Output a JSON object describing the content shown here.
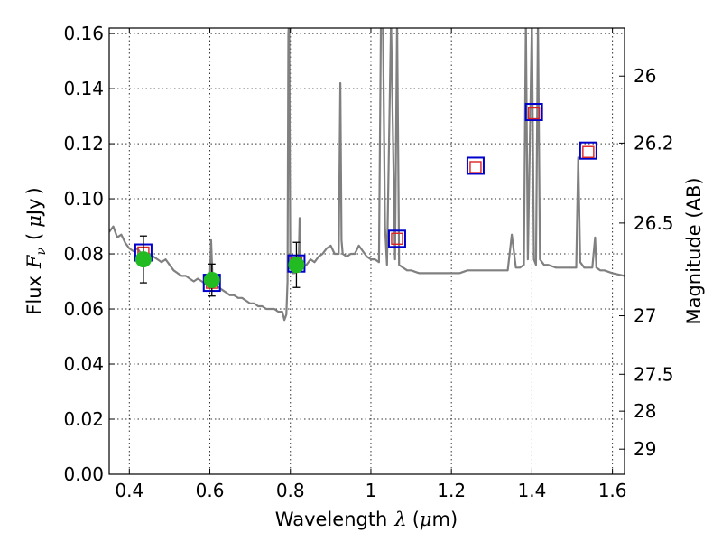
{
  "chart_data": {
    "type": "line",
    "title": "",
    "xlabel": "Wavelength",
    "xlabel_symbol": "λ",
    "xlabel_unit_open": "(",
    "xlabel_unit_mu": "μ",
    "xlabel_unit_rest": "m)",
    "ylabel": "Flux",
    "ylabel_symbol": "F",
    "ylabel_subscript": "ν",
    "ylabel_unit_open": "(",
    "ylabel_unit_mu": "μ",
    "ylabel_unit_rest": "Jy",
    "ylabel_unit_close": ")",
    "y2label": "Magnitude (AB)",
    "xlim": [
      0.35,
      1.63
    ],
    "ylim": [
      0.0,
      0.162
    ],
    "grid": true,
    "xticks": [
      0.4,
      0.6,
      0.8,
      1.0,
      1.2,
      1.4,
      1.6
    ],
    "xtick_labels": [
      "0.4",
      "0.6",
      "0.8",
      "1",
      "1.2",
      "1.4",
      "1.6"
    ],
    "yticks": [
      0.0,
      0.02,
      0.04,
      0.06,
      0.08,
      0.1,
      0.12,
      0.14,
      0.16
    ],
    "ytick_labels": [
      "0.00",
      "0.02",
      "0.04",
      "0.06",
      "0.08",
      "0.10",
      "0.12",
      "0.14",
      "0.16"
    ],
    "y2ticks": [
      {
        "label": "26",
        "mag": 26.0
      },
      {
        "label": "26.2",
        "mag": 26.2
      },
      {
        "label": "26.5",
        "mag": 26.5
      },
      {
        "label": "27",
        "mag": 27.0
      },
      {
        "label": "27.5",
        "mag": 27.5
      },
      {
        "label": "28",
        "mag": 28.0
      },
      {
        "label": "29",
        "mag": 29.0
      }
    ],
    "colors": {
      "spectrum": "#808080",
      "model_box_edge": "#0000cc",
      "observed_box_edge": "#dd2222",
      "observed_point": "#22bb22",
      "errorbar": "#000000"
    },
    "series": [
      {
        "name": "SED model spectrum",
        "x": [
          0.35,
          0.36,
          0.37,
          0.38,
          0.39,
          0.4,
          0.41,
          0.42,
          0.43,
          0.44,
          0.45,
          0.46,
          0.47,
          0.48,
          0.49,
          0.5,
          0.51,
          0.52,
          0.53,
          0.54,
          0.55,
          0.56,
          0.57,
          0.58,
          0.59,
          0.6,
          0.603,
          0.607,
          0.61,
          0.62,
          0.63,
          0.64,
          0.65,
          0.66,
          0.67,
          0.68,
          0.69,
          0.7,
          0.71,
          0.72,
          0.73,
          0.74,
          0.75,
          0.76,
          0.77,
          0.78,
          0.785,
          0.79,
          0.793,
          0.795,
          0.797,
          0.8,
          0.803,
          0.805,
          0.81,
          0.82,
          0.823,
          0.826,
          0.83,
          0.84,
          0.85,
          0.86,
          0.87,
          0.88,
          0.89,
          0.9,
          0.91,
          0.92,
          0.924,
          0.927,
          0.93,
          0.94,
          0.95,
          0.96,
          0.97,
          0.98,
          0.99,
          1.0,
          1.01,
          1.02,
          1.025,
          1.03,
          1.035,
          1.04,
          1.05,
          1.06,
          1.065,
          1.07,
          1.08,
          1.09,
          1.1,
          1.12,
          1.14,
          1.16,
          1.18,
          1.2,
          1.22,
          1.24,
          1.26,
          1.28,
          1.3,
          1.32,
          1.34,
          1.35,
          1.36,
          1.37,
          1.38,
          1.385,
          1.39,
          1.4,
          1.405,
          1.41,
          1.415,
          1.42,
          1.43,
          1.44,
          1.46,
          1.48,
          1.5,
          1.51,
          1.515,
          1.52,
          1.53,
          1.54,
          1.55,
          1.557,
          1.56,
          1.57,
          1.58,
          1.6,
          1.63
        ],
        "y": [
          0.088,
          0.09,
          0.086,
          0.087,
          0.084,
          0.082,
          0.081,
          0.082,
          0.08,
          0.079,
          0.08,
          0.079,
          0.078,
          0.077,
          0.078,
          0.076,
          0.074,
          0.073,
          0.072,
          0.072,
          0.071,
          0.07,
          0.071,
          0.07,
          0.069,
          0.07,
          0.085,
          0.07,
          0.069,
          0.068,
          0.067,
          0.066,
          0.065,
          0.065,
          0.064,
          0.064,
          0.063,
          0.062,
          0.062,
          0.061,
          0.061,
          0.06,
          0.06,
          0.06,
          0.059,
          0.059,
          0.056,
          0.058,
          0.07,
          0.16,
          0.165,
          0.075,
          0.074,
          0.073,
          0.073,
          0.074,
          0.093,
          0.076,
          0.075,
          0.076,
          0.078,
          0.077,
          0.079,
          0.08,
          0.082,
          0.083,
          0.08,
          0.08,
          0.142,
          0.085,
          0.08,
          0.079,
          0.08,
          0.08,
          0.083,
          0.081,
          0.079,
          0.078,
          0.078,
          0.077,
          0.165,
          0.165,
          0.09,
          0.076,
          0.165,
          0.078,
          0.165,
          0.076,
          0.075,
          0.074,
          0.074,
          0.073,
          0.073,
          0.073,
          0.073,
          0.073,
          0.073,
          0.074,
          0.074,
          0.074,
          0.074,
          0.074,
          0.074,
          0.087,
          0.075,
          0.075,
          0.076,
          0.165,
          0.078,
          0.165,
          0.078,
          0.076,
          0.165,
          0.078,
          0.076,
          0.076,
          0.075,
          0.075,
          0.075,
          0.075,
          0.115,
          0.077,
          0.075,
          0.075,
          0.075,
          0.086,
          0.075,
          0.074,
          0.074,
          0.073,
          0.072
        ]
      },
      {
        "name": "Model photometry",
        "marker": "square",
        "x": [
          0.435,
          0.605,
          0.815,
          1.065,
          1.26,
          1.405,
          1.54
        ],
        "y": [
          0.0805,
          0.0695,
          0.0765,
          0.0855,
          0.112,
          0.1315,
          0.1175
        ]
      },
      {
        "name": "Observed magnitudes",
        "marker": "square-outline",
        "x": [
          0.435,
          0.605,
          0.815,
          1.065,
          1.26,
          1.405,
          1.54
        ],
        "y": [
          0.0805,
          0.0695,
          0.0765,
          0.0855,
          0.1115,
          0.131,
          0.117
        ]
      },
      {
        "name": "Observed fluxes",
        "marker": "circle",
        "x": [
          0.435,
          0.605,
          0.815
        ],
        "y": [
          0.078,
          0.0705,
          0.076
        ],
        "yerr": [
          0.0085,
          0.0058,
          0.0082
        ]
      }
    ]
  }
}
